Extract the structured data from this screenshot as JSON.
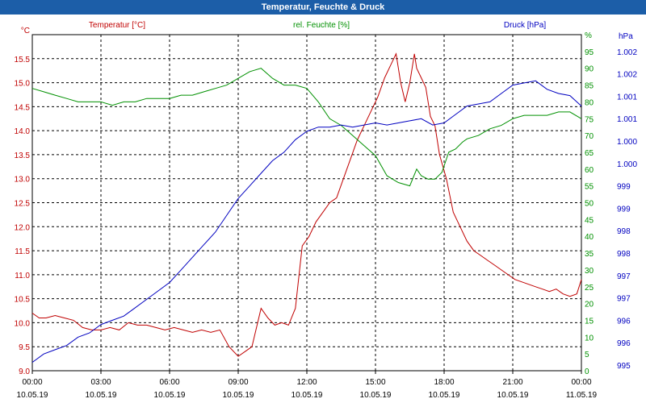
{
  "window": {
    "title": "Temperatur, Feuchte & Druck"
  },
  "chart_data": {
    "type": "line",
    "title": "Temperatur, Feuchte & Druck",
    "grid": true,
    "x_ticks": [
      {
        "hour": 0,
        "time": "00:00",
        "date": "10.05.19"
      },
      {
        "hour": 3,
        "time": "03:00",
        "date": "10.05.19"
      },
      {
        "hour": 6,
        "time": "06:00",
        "date": "10.05.19"
      },
      {
        "hour": 9,
        "time": "09:00",
        "date": "10.05.19"
      },
      {
        "hour": 12,
        "time": "12:00",
        "date": "10.05.19"
      },
      {
        "hour": 15,
        "time": "15:00",
        "date": "10.05.19"
      },
      {
        "hour": 18,
        "time": "18:00",
        "date": "10.05.19"
      },
      {
        "hour": 21,
        "time": "21:00",
        "date": "10.05.19"
      },
      {
        "hour": 24,
        "time": "00:00",
        "date": "11.05.19"
      }
    ],
    "axes": {
      "temperature": {
        "label": "Temperatur [°C]",
        "unit_label": "°C",
        "color": "#c00000",
        "ylim": [
          9.0,
          16.0
        ],
        "ticks": [
          "9.0",
          "9.5",
          "10.0",
          "10.5",
          "11.0",
          "11.5",
          "12.0",
          "12.5",
          "13.0",
          "13.5",
          "14.0",
          "14.5",
          "15.0",
          "15.5"
        ]
      },
      "humidity": {
        "label": "rel. Feuchte [%]",
        "color": "#009000",
        "ylim": [
          0,
          100
        ],
        "ticks": [
          "0",
          "5",
          "10",
          "15",
          "20",
          "25",
          "30",
          "35",
          "40",
          "45",
          "50",
          "55",
          "60",
          "65",
          "70",
          "75",
          "80",
          "85",
          "90",
          "95",
          "%"
        ]
      },
      "pressure": {
        "label": "Druck [hPa]",
        "unit_label": "hPa",
        "color": "#0000c0",
        "ylim": [
          995,
          1003
        ],
        "ticks": [
          "995",
          "996",
          "996",
          "997",
          "997",
          "998",
          "998",
          "999",
          "999",
          "1.000",
          "1.000",
          "1.001",
          "1.001",
          "1.002",
          "1.002"
        ]
      }
    },
    "series": [
      {
        "name": "Temperatur [°C]",
        "axis": "temperature",
        "color": "#c00000",
        "x": [
          0,
          0.3,
          0.6,
          1.0,
          1.4,
          1.8,
          2.2,
          2.6,
          3.0,
          3.4,
          3.8,
          4.2,
          4.6,
          5.0,
          5.4,
          5.8,
          6.2,
          6.6,
          7.0,
          7.4,
          7.8,
          8.2,
          8.6,
          9.0,
          9.3,
          9.6,
          10.0,
          10.3,
          10.6,
          10.9,
          11.2,
          11.5,
          11.8,
          12.1,
          12.4,
          12.7,
          13.0,
          13.3,
          13.6,
          13.9,
          14.2,
          14.5,
          14.8,
          15.1,
          15.4,
          15.7,
          15.9,
          16.1,
          16.3,
          16.5,
          16.7,
          16.8,
          17.0,
          17.2,
          17.4,
          17.6,
          17.8,
          18.1,
          18.4,
          18.7,
          19.0,
          19.3,
          19.6,
          19.9,
          20.2,
          20.5,
          20.8,
          21.1,
          21.4,
          21.7,
          22.0,
          22.3,
          22.6,
          22.9,
          23.2,
          23.5,
          23.8,
          24.0
        ],
        "values": [
          10.2,
          10.1,
          10.1,
          10.15,
          10.1,
          10.05,
          9.9,
          9.85,
          9.85,
          9.9,
          9.85,
          10.0,
          9.95,
          9.95,
          9.9,
          9.85,
          9.9,
          9.85,
          9.8,
          9.85,
          9.8,
          9.85,
          9.5,
          9.3,
          9.4,
          9.5,
          10.3,
          10.1,
          9.95,
          10.0,
          9.95,
          10.3,
          11.6,
          11.8,
          12.1,
          12.3,
          12.5,
          12.6,
          13.0,
          13.4,
          13.8,
          14.1,
          14.4,
          14.7,
          15.1,
          15.4,
          15.6,
          15.0,
          14.6,
          15.0,
          15.6,
          15.3,
          15.1,
          14.9,
          14.3,
          14.1,
          13.5,
          13.0,
          12.3,
          12.0,
          11.7,
          11.5,
          11.4,
          11.3,
          11.2,
          11.1,
          11.0,
          10.9,
          10.85,
          10.8,
          10.75,
          10.7,
          10.65,
          10.7,
          10.6,
          10.55,
          10.6,
          10.9
        ]
      },
      {
        "name": "rel. Feuchte [%]",
        "axis": "humidity",
        "color": "#009000",
        "x": [
          0,
          0.5,
          1.0,
          1.5,
          2.0,
          2.5,
          3.0,
          3.5,
          4.0,
          4.5,
          5.0,
          5.5,
          6.0,
          6.5,
          7.0,
          7.5,
          8.0,
          8.5,
          9.0,
          9.5,
          10.0,
          10.5,
          11.0,
          11.5,
          12.0,
          12.5,
          13.0,
          13.5,
          14.0,
          14.5,
          15.0,
          15.5,
          16.0,
          16.5,
          16.8,
          17.0,
          17.3,
          17.6,
          17.9,
          18.2,
          18.5,
          18.8,
          19.0,
          19.5,
          20.0,
          20.5,
          21.0,
          21.5,
          22.0,
          22.5,
          23.0,
          23.5,
          24.0
        ],
        "values": [
          84,
          83,
          82,
          81,
          80,
          80,
          80,
          79,
          80,
          80,
          81,
          81,
          81,
          82,
          82,
          83,
          84,
          85,
          87,
          89,
          90,
          87,
          85,
          85,
          84,
          80,
          75,
          73,
          70,
          67,
          64,
          58,
          56,
          55,
          60,
          58,
          57,
          57,
          59,
          65,
          66,
          68,
          69,
          70,
          72,
          73,
          75,
          76,
          76,
          76,
          77,
          77,
          75
        ]
      },
      {
        "name": "Druck [hPa]",
        "axis": "pressure",
        "color": "#0000c0",
        "x": [
          0,
          0.5,
          1.0,
          1.5,
          2.0,
          2.5,
          3.0,
          3.5,
          4.0,
          4.5,
          5.0,
          5.5,
          6.0,
          6.5,
          7.0,
          7.5,
          8.0,
          8.5,
          9.0,
          9.5,
          10.0,
          10.5,
          11.0,
          11.5,
          12.0,
          12.5,
          13.0,
          13.5,
          14.0,
          14.5,
          15.0,
          15.5,
          16.0,
          16.5,
          17.0,
          17.5,
          18.0,
          18.5,
          19.0,
          19.5,
          20.0,
          20.5,
          21.0,
          21.5,
          22.0,
          22.5,
          23.0,
          23.5,
          24.0
        ],
        "values": [
          995.2,
          995.4,
          995.5,
          995.6,
          995.8,
          995.9,
          996.1,
          996.2,
          996.3,
          996.5,
          996.7,
          996.9,
          997.1,
          997.4,
          997.7,
          998.0,
          998.3,
          998.7,
          999.1,
          999.4,
          999.7,
          1000.0,
          1000.2,
          1000.5,
          1000.7,
          1000.8,
          1000.8,
          1000.85,
          1000.8,
          1000.85,
          1000.9,
          1000.85,
          1000.9,
          1000.95,
          1001.0,
          1000.85,
          1000.9,
          1001.1,
          1001.3,
          1001.35,
          1001.4,
          1001.6,
          1001.8,
          1001.85,
          1001.9,
          1001.7,
          1001.6,
          1001.55,
          1001.3
        ]
      }
    ]
  }
}
